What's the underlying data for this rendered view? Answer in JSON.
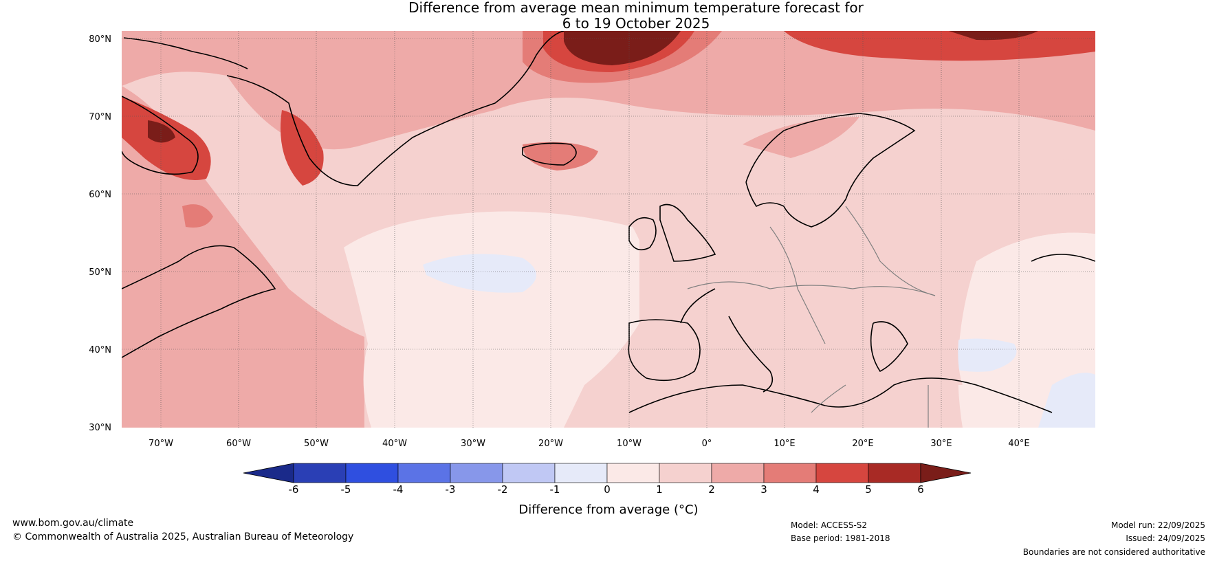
{
  "title": {
    "line1": "Difference from average mean minimum temperature forecast for",
    "line2": "6 to 19 October 2025"
  },
  "map": {
    "lat_labels": [
      "80°N",
      "70°N",
      "60°N",
      "50°N",
      "40°N",
      "30°N"
    ],
    "lon_labels": [
      "70°W",
      "60°W",
      "50°W",
      "40°W",
      "30°W",
      "20°W",
      "10°W",
      "0°",
      "10°E",
      "20°E",
      "30°E",
      "40°E"
    ]
  },
  "colorbar": {
    "label": "Difference from average (°C)",
    "ticks": [
      "-6",
      "-5",
      "-4",
      "-3",
      "-2",
      "-1",
      "0",
      "1",
      "2",
      "3",
      "4",
      "5",
      "6"
    ],
    "colors": [
      "#1a2a8a",
      "#2a3fb5",
      "#2f4fe0",
      "#5b73e6",
      "#8797ea",
      "#c0c8f4",
      "#e6eaf9",
      "#fbe9e7",
      "#f5d1cf",
      "#eeaaa8",
      "#e47c77",
      "#d6463f",
      "#a82a25",
      "#7a1d19"
    ]
  },
  "footer": {
    "website": "www.bom.gov.au/climate",
    "copyright": "© Commonwealth of Australia 2025, Australian Bureau of Meteorology",
    "model": "Model: ACCESS-S2",
    "base_period": "Base period: 1981-2018",
    "model_run": "Model run: 22/09/2025",
    "issued": "Issued: 24/09/2025",
    "disclaimer": "Boundaries are not considered authoritative"
  }
}
